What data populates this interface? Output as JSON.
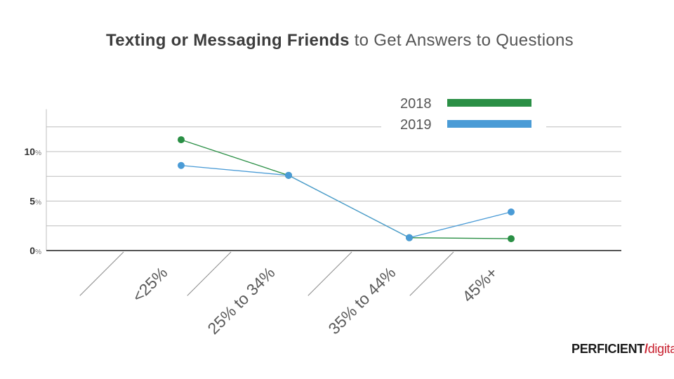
{
  "chart_data": {
    "type": "line",
    "title": {
      "bold": "Texting or Messaging Friends",
      "regular": " to Get Answers to Questions"
    },
    "categories": [
      "<25%",
      "25% to 34%",
      "35% to 44%",
      "45%+"
    ],
    "series": [
      {
        "name": "2018",
        "color": "#2a8f45",
        "values": [
          11.2,
          7.6,
          1.3,
          1.2
        ]
      },
      {
        "name": "2019",
        "color": "#4a9bd6",
        "values": [
          8.6,
          7.6,
          1.3,
          3.9
        ]
      }
    ],
    "y_ticks": [
      {
        "value": 10,
        "number": "10",
        "unit": "%"
      },
      {
        "value": 5,
        "number": "5",
        "unit": "%"
      },
      {
        "value": 0,
        "number": "0",
        "unit": "%"
      }
    ],
    "ylim": [
      0,
      14
    ],
    "grid_values": [
      2.5,
      5,
      7.5,
      10,
      12.5
    ],
    "xlabel": "",
    "ylabel": "",
    "legend_position": "top-right",
    "grid": true
  },
  "brand": {
    "part_a": "PERFICIENT",
    "slash": "/",
    "part_b": "digital"
  }
}
